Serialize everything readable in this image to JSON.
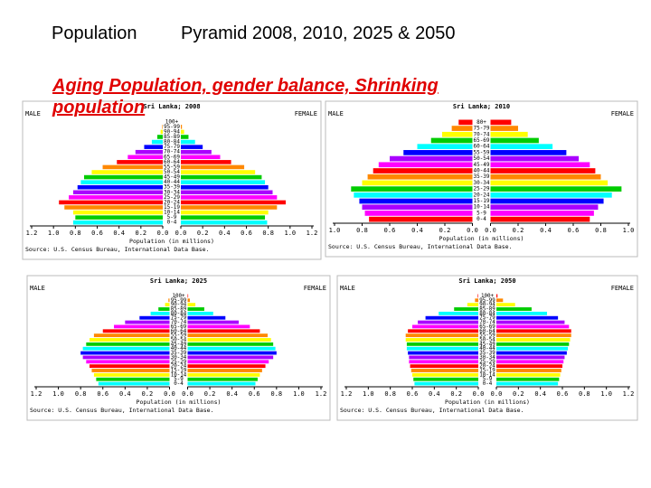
{
  "slide": {
    "title_left": "Population",
    "title_right": "Pyramid 2008, 2010, 2025 & 2050",
    "subtitle": "Aging Population, gender balance, Shrinking population"
  },
  "chart_data": [
    {
      "type": "pyramid",
      "title": "Sri Lanka; 2008",
      "xlabel": "Population (in millions)",
      "source": "Source: U.S. Census Bureau, International Data Base.",
      "categories": [
        "100+",
        "95-99",
        "90-94",
        "85-89",
        "80-84",
        "75-79",
        "70-74",
        "65-69",
        "60-64",
        "55-59",
        "50-54",
        "45-49",
        "40-44",
        "35-39",
        "30-34",
        "25-29",
        "20-24",
        "15-19",
        "10-14",
        "5-9",
        "0-4"
      ],
      "series": [
        {
          "name": "MALE",
          "values": [
            0,
            0.005,
            0.02,
            0.05,
            0.1,
            0.17,
            0.25,
            0.32,
            0.42,
            0.55,
            0.65,
            0.72,
            0.75,
            0.78,
            0.82,
            0.86,
            0.95,
            0.9,
            0.82,
            0.8,
            0.82
          ]
        },
        {
          "name": "FEMALE",
          "values": [
            0,
            0.01,
            0.03,
            0.07,
            0.13,
            0.2,
            0.28,
            0.36,
            0.46,
            0.58,
            0.68,
            0.74,
            0.77,
            0.8,
            0.84,
            0.88,
            0.96,
            0.88,
            0.8,
            0.77,
            0.79
          ]
        }
      ],
      "xlim": [
        0,
        1.2
      ],
      "xticks": [
        1.2,
        {
          "value": 1,
          "label": "1.0"
        },
        0.8,
        0.6,
        0.4,
        0.2,
        {
          "value": 0,
          "label": "0.0"
        }
      ],
      "colors": [
        "#ff0000",
        "#ff8800",
        "#ffff00",
        "#00cc00",
        "#00ffff",
        "#0000ff",
        "#aa00ff",
        "#ff00ff"
      ]
    },
    {
      "type": "pyramid",
      "title": "Sri Lanka; 2010",
      "xlabel": "Population (in millions)",
      "source": "Source: U.S. Census Bureau, International Data Base.",
      "categories": [
        "80+",
        "75-79",
        "70-74",
        "65-69",
        "60-64",
        "55-59",
        "50-54",
        "45-49",
        "40-44",
        "35-39",
        "30-34",
        "25-29",
        "20-24",
        "15-19",
        "10-14",
        "5-9",
        "0-4"
      ],
      "series": [
        {
          "name": "MALE",
          "values": [
            0.1,
            0.15,
            0.22,
            0.3,
            0.4,
            0.5,
            0.6,
            0.68,
            0.72,
            0.76,
            0.8,
            0.88,
            0.86,
            0.82,
            0.8,
            0.78,
            0.75
          ]
        },
        {
          "name": "FEMALE",
          "values": [
            0.15,
            0.2,
            0.27,
            0.35,
            0.45,
            0.55,
            0.64,
            0.72,
            0.76,
            0.8,
            0.85,
            0.95,
            0.88,
            0.82,
            0.78,
            0.75,
            0.72
          ]
        }
      ],
      "xlim": [
        0,
        1
      ],
      "xticks": [
        {
          "value": 1,
          "label": "1.0"
        },
        0.8,
        0.6,
        0.4,
        0.2,
        {
          "value": 0,
          "label": "0.0"
        }
      ],
      "colors": [
        "#ff0000",
        "#ff8800",
        "#ffff00",
        "#00cc00",
        "#00ffff",
        "#0000ff",
        "#aa00ff",
        "#ff00ff"
      ]
    },
    {
      "type": "pyramid",
      "title": "Sri Lanka; 2025",
      "xlabel": "Population (in millions)",
      "source": "Source: U.S. Census Bureau, International Data Base.",
      "categories": [
        "100+",
        "95-99",
        "90-94",
        "85-89",
        "80-84",
        "75-79",
        "70-74",
        "65-69",
        "60-64",
        "55-59",
        "50-54",
        "45-49",
        "40-44",
        "35-39",
        "30-34",
        "25-29",
        "20-24",
        "15-19",
        "10-14",
        "5-9",
        "0-4"
      ],
      "series": [
        {
          "name": "MALE",
          "values": [
            0,
            0.01,
            0.04,
            0.1,
            0.17,
            0.27,
            0.4,
            0.5,
            0.6,
            0.68,
            0.72,
            0.75,
            0.78,
            0.8,
            0.78,
            0.75,
            0.72,
            0.7,
            0.68,
            0.66,
            0.64
          ]
        },
        {
          "name": "FEMALE",
          "values": [
            0.005,
            0.02,
            0.07,
            0.15,
            0.23,
            0.34,
            0.46,
            0.56,
            0.65,
            0.72,
            0.75,
            0.77,
            0.79,
            0.8,
            0.77,
            0.73,
            0.7,
            0.67,
            0.65,
            0.63,
            0.61
          ]
        }
      ],
      "xlim": [
        0,
        1.2
      ],
      "xticks": [
        1.2,
        {
          "value": 1,
          "label": "1.0"
        },
        0.8,
        0.6,
        0.4,
        0.2,
        {
          "value": 0,
          "label": "0.0"
        }
      ],
      "colors": [
        "#ff0000",
        "#ff8800",
        "#ffff00",
        "#00cc00",
        "#00ffff",
        "#0000ff",
        "#aa00ff",
        "#ff00ff"
      ]
    },
    {
      "type": "pyramid",
      "title": "Sri Lanka; 2050",
      "xlabel": "Population (in millions)",
      "source": "Source: U.S. Census Bureau, International Data Base.",
      "categories": [
        "100+",
        "95-99",
        "90-94",
        "85-89",
        "80-84",
        "75-79",
        "70-74",
        "65-69",
        "60-64",
        "55-59",
        "50-54",
        "45-49",
        "40-44",
        "35-39",
        "30-34",
        "25-29",
        "20-24",
        "15-19",
        "10-14",
        "5-9",
        "0-4"
      ],
      "series": [
        {
          "name": "MALE",
          "values": [
            0.005,
            0.03,
            0.1,
            0.22,
            0.36,
            0.48,
            0.55,
            0.6,
            0.64,
            0.66,
            0.66,
            0.65,
            0.65,
            0.64,
            0.63,
            0.63,
            0.62,
            0.61,
            0.6,
            0.59,
            0.58
          ]
        },
        {
          "name": "FEMALE",
          "values": [
            0.01,
            0.06,
            0.17,
            0.32,
            0.46,
            0.56,
            0.62,
            0.66,
            0.68,
            0.68,
            0.67,
            0.66,
            0.65,
            0.64,
            0.62,
            0.61,
            0.6,
            0.59,
            0.58,
            0.57,
            0.56
          ]
        }
      ],
      "xlim": [
        0,
        1.2
      ],
      "xticks": [
        1.2,
        {
          "value": 1,
          "label": "1.0"
        },
        0.8,
        0.6,
        0.4,
        0.2,
        {
          "value": 0,
          "label": "0.0"
        }
      ],
      "colors": [
        "#ff0000",
        "#ff8800",
        "#ffff00",
        "#00cc00",
        "#00ffff",
        "#0000ff",
        "#aa00ff",
        "#ff00ff"
      ]
    }
  ]
}
